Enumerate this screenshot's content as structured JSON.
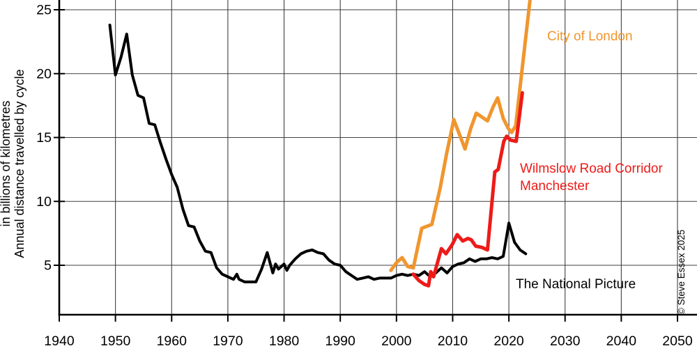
{
  "copyright": "© Steve Essex 2025",
  "chart_data": {
    "type": "line",
    "title": "",
    "ylabel_line1": "Annual distance travelled by cycle",
    "ylabel_line2": "in billions of kilometres",
    "xlabel": "",
    "x_range": [
      1940,
      2050
    ],
    "y_axis_top": 25,
    "grid": true,
    "legend_position": "labels-on-chart",
    "x_ticks": [
      1940,
      1950,
      1960,
      1970,
      1980,
      1990,
      2000,
      2010,
      2020,
      2030,
      2040,
      2050
    ],
    "y_ticks": [
      5,
      10,
      15,
      20,
      25
    ],
    "series": [
      {
        "name": "The National Picture",
        "color": "#000000",
        "width": 4,
        "points": [
          [
            1949,
            23.8
          ],
          [
            1950,
            19.9
          ],
          [
            1951,
            21.3
          ],
          [
            1952,
            23.1
          ],
          [
            1953,
            19.9
          ],
          [
            1954,
            18.3
          ],
          [
            1955,
            18.1
          ],
          [
            1956,
            16.1
          ],
          [
            1957,
            16.0
          ],
          [
            1958,
            14.6
          ],
          [
            1959,
            13.3
          ],
          [
            1960,
            12.1
          ],
          [
            1961,
            11.1
          ],
          [
            1962,
            9.4
          ],
          [
            1963,
            8.1
          ],
          [
            1964,
            8.0
          ],
          [
            1965,
            6.9
          ],
          [
            1966,
            6.1
          ],
          [
            1967,
            6.0
          ],
          [
            1968,
            4.8
          ],
          [
            1969,
            4.3
          ],
          [
            1970,
            4.1
          ],
          [
            1971,
            3.9
          ],
          [
            1971.6,
            4.3
          ],
          [
            1972,
            3.9
          ],
          [
            1973,
            3.7
          ],
          [
            1974,
            3.7
          ],
          [
            1975,
            3.7
          ],
          [
            1976,
            4.7
          ],
          [
            1977,
            6.0
          ],
          [
            1978,
            4.4
          ],
          [
            1978.5,
            5.1
          ],
          [
            1979,
            4.7
          ],
          [
            1980,
            5.1
          ],
          [
            1980.5,
            4.6
          ],
          [
            1981,
            5.0
          ],
          [
            1982,
            5.5
          ],
          [
            1983,
            5.9
          ],
          [
            1984,
            6.1
          ],
          [
            1985,
            6.2
          ],
          [
            1986,
            6.0
          ],
          [
            1987,
            5.9
          ],
          [
            1988,
            5.4
          ],
          [
            1989,
            5.1
          ],
          [
            1990,
            5.0
          ],
          [
            1991,
            4.5
          ],
          [
            1992,
            4.2
          ],
          [
            1993,
            3.9
          ],
          [
            1994,
            4.0
          ],
          [
            1995,
            4.1
          ],
          [
            1996,
            3.9
          ],
          [
            1997,
            4.0
          ],
          [
            1998,
            4.0
          ],
          [
            1999,
            4.0
          ],
          [
            2000,
            4.2
          ],
          [
            2001,
            4.3
          ],
          [
            2002,
            4.2
          ],
          [
            2003,
            4.3
          ],
          [
            2004,
            4.2
          ],
          [
            2005,
            4.5
          ],
          [
            2006,
            4.1
          ],
          [
            2007,
            4.4
          ],
          [
            2008,
            4.8
          ],
          [
            2009,
            4.4
          ],
          [
            2010,
            4.9
          ],
          [
            2011,
            5.1
          ],
          [
            2012,
            5.2
          ],
          [
            2013,
            5.5
          ],
          [
            2014,
            5.3
          ],
          [
            2015,
            5.5
          ],
          [
            2016,
            5.5
          ],
          [
            2017,
            5.6
          ],
          [
            2018,
            5.5
          ],
          [
            2019,
            5.7
          ],
          [
            2020,
            8.3
          ],
          [
            2021,
            6.8
          ],
          [
            2022,
            6.2
          ],
          [
            2023,
            5.9
          ]
        ]
      },
      {
        "name": "City of London",
        "color": "#F0962E",
        "width": 5,
        "points": [
          [
            1999,
            4.6
          ],
          [
            2000,
            5.2
          ],
          [
            2001,
            5.6
          ],
          [
            2002,
            4.9
          ],
          [
            2003,
            4.8
          ],
          [
            2004.5,
            7.9
          ],
          [
            2006.3,
            8.2
          ],
          [
            2007.8,
            11.1
          ],
          [
            2008.9,
            13.7
          ],
          [
            2010.2,
            16.4
          ],
          [
            2012.2,
            14.1
          ],
          [
            2013.2,
            15.7
          ],
          [
            2014.2,
            16.9
          ],
          [
            2016.2,
            16.3
          ],
          [
            2017.2,
            17.4
          ],
          [
            2018,
            18.1
          ],
          [
            2019,
            16.5
          ],
          [
            2019.9,
            15.7
          ],
          [
            2020.5,
            15.4
          ],
          [
            2021.2,
            15.9
          ],
          [
            2023.8,
            25.9
          ]
        ]
      },
      {
        "name": "Wilmslow Road Corridor Manchester",
        "name_lines": [
          "Wilmslow Road Corridor",
          "Manchester"
        ],
        "color": "#ED1B18",
        "width": 5,
        "points": [
          [
            2003,
            4.3
          ],
          [
            2004,
            3.8
          ],
          [
            2005,
            3.5
          ],
          [
            2005.7,
            3.4
          ],
          [
            2006.1,
            4.5
          ],
          [
            2006.6,
            4.1
          ],
          [
            2008,
            6.3
          ],
          [
            2008.8,
            5.9
          ],
          [
            2009.9,
            6.6
          ],
          [
            2010.8,
            7.4
          ],
          [
            2011.8,
            6.9
          ],
          [
            2012.7,
            7.1
          ],
          [
            2013.3,
            7.0
          ],
          [
            2014.1,
            6.5
          ],
          [
            2015.2,
            6.4
          ],
          [
            2016.2,
            6.2
          ],
          [
            2017.5,
            12.3
          ],
          [
            2018.1,
            12.5
          ],
          [
            2019.1,
            14.7
          ],
          [
            2019.6,
            15.1
          ],
          [
            2020.3,
            14.8
          ],
          [
            2021.3,
            14.7
          ],
          [
            2022.4,
            18.5
          ]
        ]
      }
    ]
  }
}
